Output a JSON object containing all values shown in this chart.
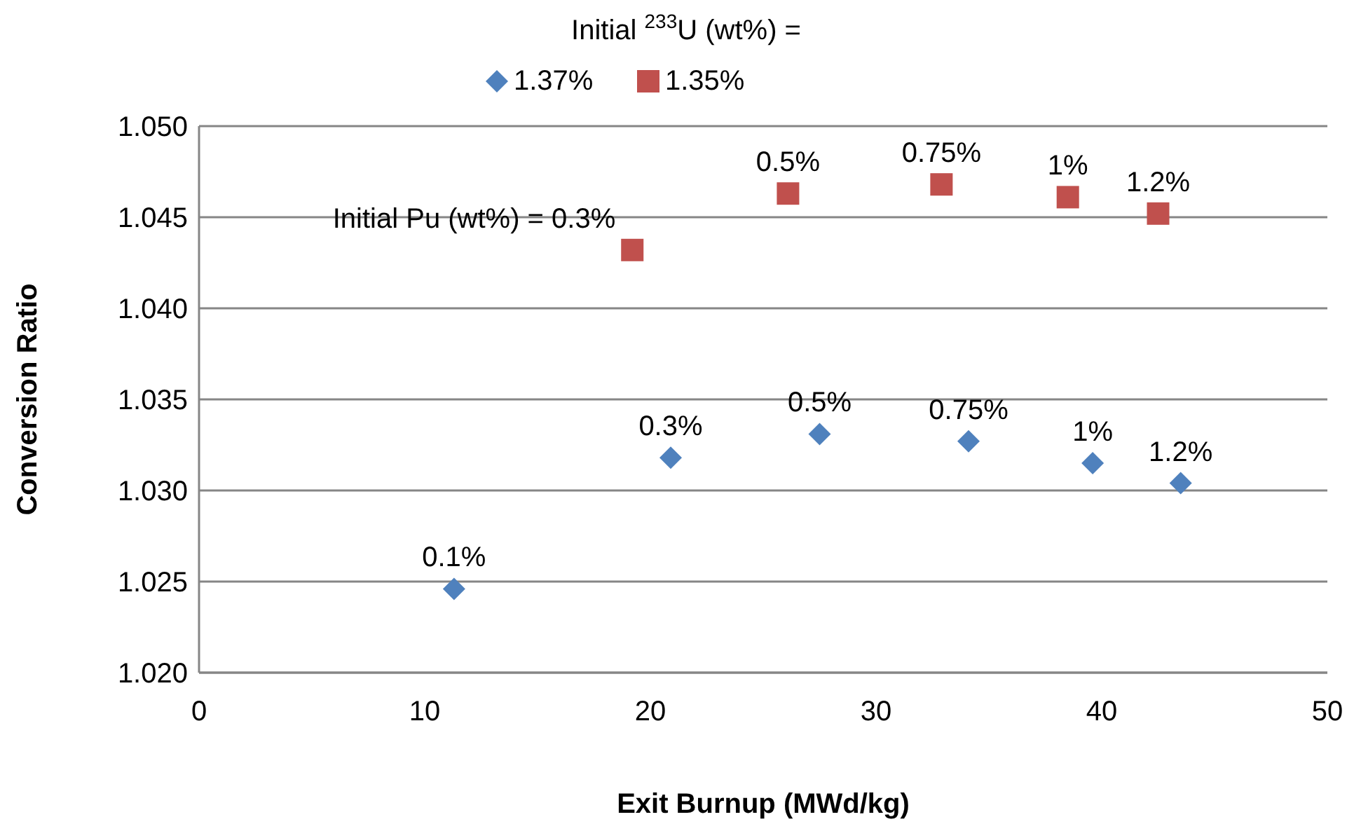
{
  "chart_data": {
    "type": "scatter",
    "xlabel": "Exit Burnup (MWd/kg)",
    "ylabel": "Conversion Ratio",
    "legend_title": "Initial $^{233}$U (wt%) =",
    "legend": "top",
    "grid": "y",
    "xlim": [
      0,
      50
    ],
    "xticks": [
      0,
      10,
      20,
      30,
      40,
      50
    ],
    "ylim": [
      1.02,
      1.05
    ],
    "yticks": [
      {
        "value": 1.02,
        "label": "1.020"
      },
      {
        "value": 1.025,
        "label": "1.025"
      },
      {
        "value": 1.03,
        "label": "1.030"
      },
      {
        "value": 1.035,
        "label": "1.035"
      },
      {
        "value": 1.04,
        "label": "1.040"
      },
      {
        "value": 1.045,
        "label": "1.045"
      },
      {
        "value": 1.05,
        "label": "1.050"
      }
    ],
    "series": [
      {
        "name": "1.37%",
        "color": "#4f81bd",
        "marker": "diamond",
        "x": [
          11.3,
          20.9,
          27.5,
          34.1,
          39.6,
          43.5
        ],
        "values": [
          1.0246,
          1.0318,
          1.0331,
          1.0327,
          1.0315,
          1.0304
        ]
      },
      {
        "name": "1.35%",
        "color": "#c0504d",
        "marker": "square",
        "x": [
          19.2,
          26.1,
          32.9,
          38.5,
          42.5
        ],
        "values": [
          1.0432,
          1.0463,
          1.0468,
          1.0461,
          1.0452
        ]
      }
    ],
    "annotations": [
      {
        "text": "0.1%",
        "x": 11.3,
        "y": 1.0246
      },
      {
        "text": "0.3%",
        "x": 20.9,
        "y": 1.0318
      },
      {
        "text": "0.5%",
        "x": 27.5,
        "y": 1.0331
      },
      {
        "text": "0.75%",
        "x": 34.1,
        "y": 1.0327
      },
      {
        "text": "1%",
        "x": 39.6,
        "y": 1.0315
      },
      {
        "text": "1.2%",
        "x": 43.5,
        "y": 1.0304
      },
      {
        "text": "Initial Pu (wt%) = 0.3%",
        "x": 19.2,
        "y": 1.0432
      },
      {
        "text": "0.5%",
        "x": 26.1,
        "y": 1.0463
      },
      {
        "text": "0.75%",
        "x": 32.9,
        "y": 1.0468
      },
      {
        "text": "1%",
        "x": 38.5,
        "y": 1.0461
      },
      {
        "text": "1.2%",
        "x": 42.5,
        "y": 1.0452
      }
    ]
  }
}
